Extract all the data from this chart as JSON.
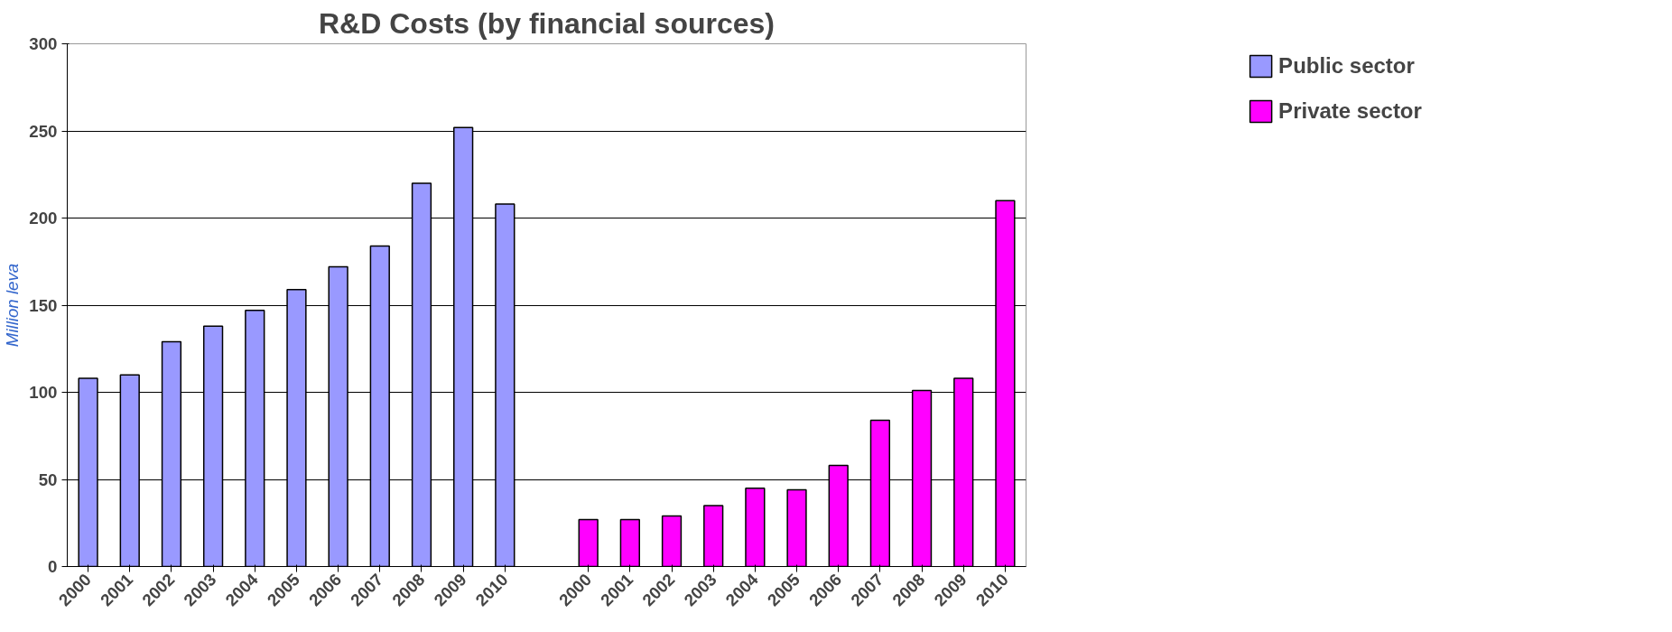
{
  "chart_data": {
    "type": "bar",
    "title": "R&D Costs (by financial sources)",
    "ylabel": "Million leva",
    "categories": [
      "2000",
      "2001",
      "2002",
      "2003",
      "2004",
      "2005",
      "2006",
      "2007",
      "2008",
      "2009",
      "2010",
      null,
      "2000",
      "2001",
      "2002",
      "2003",
      "2004",
      "2005",
      "2006",
      "2007",
      "2008",
      "2009",
      "2010"
    ],
    "series": [
      {
        "name": "Public sector",
        "color": "#9999ff",
        "values": [
          108,
          110,
          129,
          138,
          147,
          159,
          172,
          184,
          220,
          252,
          208,
          null,
          null,
          null,
          null,
          null,
          null,
          null,
          null,
          null,
          null,
          null,
          null
        ]
      },
      {
        "name": "Private sector",
        "color": "#ff00ff",
        "values": [
          null,
          null,
          null,
          null,
          null,
          null,
          null,
          null,
          null,
          null,
          null,
          null,
          27,
          27,
          29,
          35,
          45,
          44,
          58,
          84,
          101,
          108,
          210
        ]
      }
    ],
    "ylim": [
      0,
      300
    ],
    "yticks": [
      0,
      50,
      100,
      150,
      200,
      250,
      300
    ],
    "grid": "y",
    "legend": "top right"
  }
}
